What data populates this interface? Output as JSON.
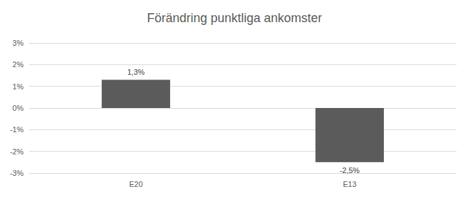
{
  "chart_data": {
    "type": "bar",
    "title": "Förändring punktliga ankomster",
    "categories": [
      "E20",
      "E13"
    ],
    "values": [
      1.3,
      -2.5
    ],
    "value_labels": [
      "1,3%",
      "-2,5%"
    ],
    "data_labels": true,
    "color": "#5b5b5b",
    "ylim": [
      -3,
      3
    ],
    "yticks": [
      {
        "value": -3,
        "label": "-3%"
      },
      {
        "value": -2,
        "label": "-2%"
      },
      {
        "value": -1,
        "label": "-1%"
      },
      {
        "value": 0,
        "label": "0%"
      },
      {
        "value": 1,
        "label": "1%"
      },
      {
        "value": 2,
        "label": "2%"
      },
      {
        "value": 3,
        "label": "3%"
      }
    ],
    "grid": true
  }
}
